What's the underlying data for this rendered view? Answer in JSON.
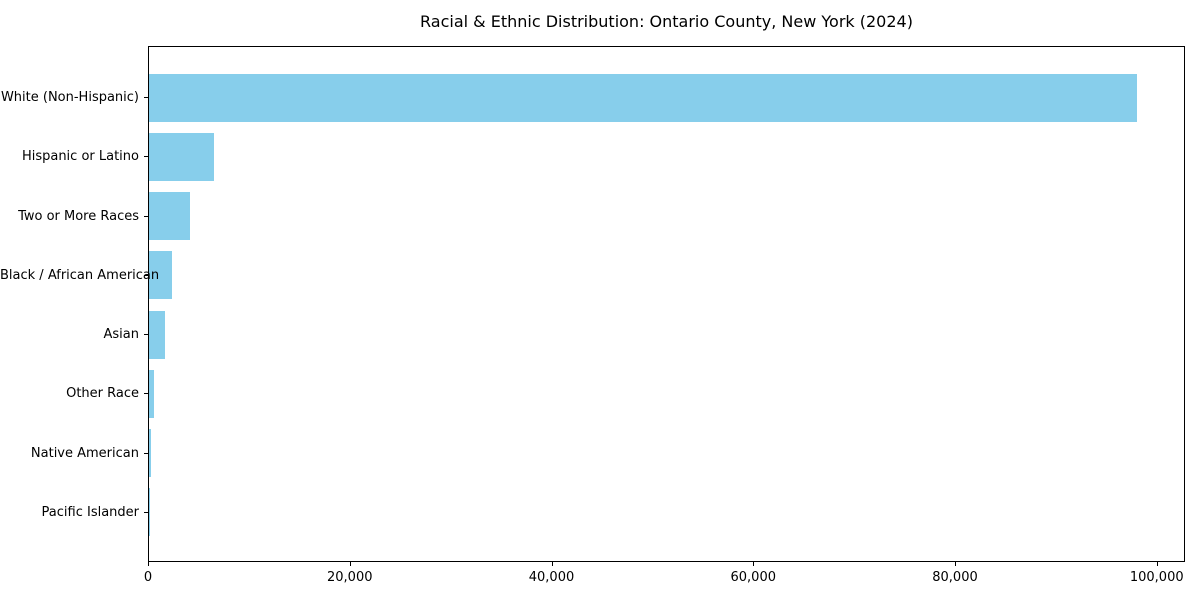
{
  "title": "Racial & Ethnic Distribution: Ontario County, New York (2024)",
  "chart_data": {
    "type": "bar",
    "orientation": "horizontal",
    "title": "Racial & Ethnic Distribution: Ontario County, New York (2024)",
    "xlabel": "",
    "ylabel": "",
    "categories": [
      "White (Non-Hispanic)",
      "Hispanic or Latino",
      "Two or More Races",
      "Black / African American",
      "Asian",
      "Other Race",
      "Native American",
      "Pacific Islander"
    ],
    "values": [
      97900,
      6400,
      4050,
      2300,
      1600,
      500,
      230,
      40
    ],
    "xlim": [
      0,
      102800
    ],
    "xticks": [
      0,
      20000,
      40000,
      60000,
      80000,
      100000
    ],
    "xtick_labels": [
      "0",
      "20,000",
      "40,000",
      "60,000",
      "80,000",
      "100,000"
    ],
    "bar_color": "#87CEEB",
    "axis_color": "#000000",
    "grid": false,
    "legend": "none",
    "sorted": "descending"
  }
}
